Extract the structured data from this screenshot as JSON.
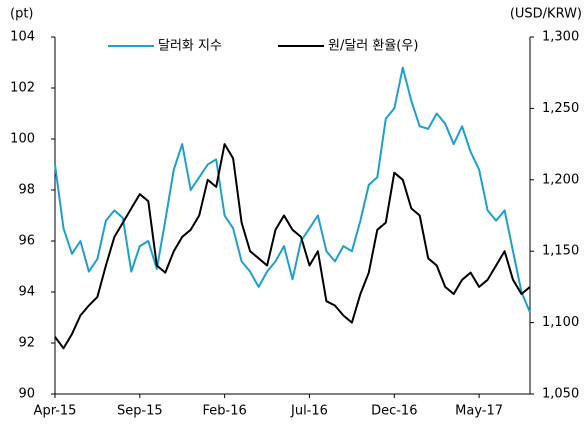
{
  "chart_data": {
    "type": "line",
    "y_unit_label": "(pt)",
    "y2_unit_label": "(USD/KRW)",
    "categories": [
      "Apr-15",
      null,
      null,
      null,
      null,
      null,
      null,
      null,
      null,
      null,
      "Sep-15",
      null,
      null,
      null,
      null,
      null,
      null,
      null,
      null,
      null,
      "Feb-16",
      null,
      null,
      null,
      null,
      null,
      null,
      null,
      null,
      null,
      "Jul-16",
      null,
      null,
      null,
      null,
      null,
      null,
      null,
      null,
      null,
      "Dec-16",
      null,
      null,
      null,
      null,
      null,
      null,
      null,
      null,
      null,
      "May-17",
      null,
      null,
      null,
      null,
      null,
      null
    ],
    "series": [
      {
        "name": "달러화 지수",
        "color": "#1e9fcf",
        "values": [
          99.0,
          96.5,
          95.5,
          96.0,
          94.8,
          95.3,
          96.8,
          97.2,
          96.9,
          94.8,
          95.8,
          96.0,
          94.9,
          96.8,
          98.8,
          99.8,
          98.0,
          98.5,
          99.0,
          99.2,
          97.0,
          96.5,
          95.2,
          94.8,
          94.2,
          94.8,
          95.2,
          95.8,
          94.5,
          96.0,
          96.5,
          97.0,
          95.6,
          95.2,
          95.8,
          95.6,
          96.8,
          98.2,
          98.5,
          100.8,
          101.2,
          102.8,
          101.5,
          100.5,
          100.4,
          101.0,
          100.6,
          99.8,
          100.5,
          99.5,
          98.8,
          97.2,
          96.8,
          97.2,
          95.6,
          94.0,
          93.2
        ]
      },
      {
        "name": "원/달러 환율(우)",
        "color": "#000000",
        "axis": "y2",
        "values": [
          1090,
          1082,
          1092,
          1105,
          1112,
          1118,
          1140,
          1160,
          1170,
          1180,
          1190,
          1185,
          1140,
          1135,
          1150,
          1160,
          1165,
          1175,
          1200,
          1195,
          1225,
          1215,
          1170,
          1150,
          1145,
          1140,
          1165,
          1175,
          1165,
          1160,
          1140,
          1150,
          1115,
          1112,
          1105,
          1100,
          1120,
          1135,
          1165,
          1170,
          1205,
          1200,
          1180,
          1175,
          1145,
          1140,
          1125,
          1120,
          1130,
          1135,
          1125,
          1130,
          1140,
          1150,
          1130,
          1120,
          1125
        ]
      }
    ],
    "ylim": [
      90,
      104
    ],
    "yticks": [
      90,
      92,
      94,
      96,
      98,
      100,
      102,
      104
    ],
    "y2lim": [
      1050,
      1300
    ],
    "y2ticks": [
      {
        "value": 1050,
        "label": "1,050"
      },
      {
        "value": 1100,
        "label": "1,100"
      },
      {
        "value": 1150,
        "label": "1,150"
      },
      {
        "value": 1200,
        "label": "1,200"
      },
      {
        "value": 1250,
        "label": "1,250"
      },
      {
        "value": 1300,
        "label": "1,300"
      }
    ],
    "legend": "top"
  }
}
